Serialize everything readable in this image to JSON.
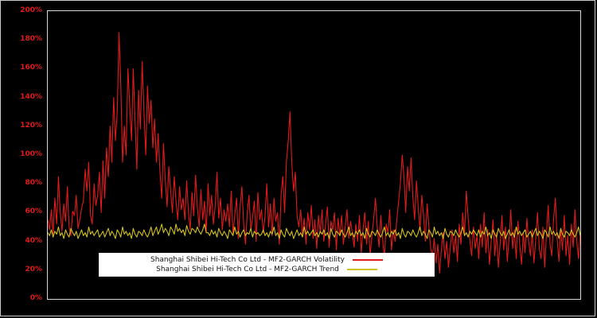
{
  "figure": {
    "background": "#000000",
    "border_color": "#c9c9c9",
    "axis_label_color": "#e11b1b"
  },
  "chart_data": {
    "type": "line",
    "title": "",
    "xlabel": "",
    "ylabel": "",
    "ylim": [
      0,
      200
    ],
    "grid": false,
    "legend_position": "lower-left-inside",
    "y_ticks": [
      "0%",
      "20%",
      "40%",
      "60%",
      "80%",
      "100%",
      "120%",
      "140%",
      "160%",
      "180%",
      "200%"
    ],
    "y_tick_values": [
      0,
      20,
      40,
      60,
      80,
      100,
      120,
      140,
      160,
      180,
      200
    ],
    "x_ticks": [],
    "series": [
      {
        "name": "Shanghai Shibei Hi-Tech Co Ltd - MF2-GARCH Volatility",
        "color": "#e11b1b",
        "unit": "%",
        "values": [
          55,
          48,
          62,
          45,
          70,
          52,
          85,
          60,
          47,
          66,
          54,
          78,
          50,
          44,
          61,
          58,
          72,
          49,
          55,
          63,
          68,
          90,
          75,
          95,
          58,
          52,
          80,
          65,
          72,
          88,
          60,
          96,
          70,
          105,
          85,
          120,
          95,
          140,
          110,
          130,
          185,
          150,
          95,
          120,
          100,
          160,
          135,
          110,
          160,
          125,
          90,
          145,
          118,
          165,
          130,
          100,
          148,
          122,
          138,
          105,
          125,
          95,
          115,
          88,
          70,
          108,
          82,
          64,
          92,
          75,
          60,
          85,
          68,
          55,
          78,
          62,
          70,
          55,
          82,
          60,
          48,
          74,
          58,
          86,
          64,
          50,
          76,
          55,
          68,
          46,
          80,
          58,
          72,
          52,
          64,
          88,
          56,
          70,
          48,
          62,
          54,
          66,
          50,
          75,
          45,
          58,
          70,
          42,
          64,
          78,
          52,
          38,
          60,
          72,
          48,
          56,
          68,
          40,
          74,
          55,
          62,
          46,
          58,
          80,
          50,
          66,
          44,
          70,
          54,
          60,
          38,
          72,
          85,
          60,
          95,
          110,
          130,
          95,
          75,
          88,
          58,
          50,
          62,
          44,
          56,
          38,
          60,
          48,
          65,
          42,
          55,
          35,
          58,
          46,
          62,
          40,
          52,
          64,
          36,
          54,
          48,
          60,
          34,
          56,
          44,
          58,
          38,
          50,
          62,
          42,
          54,
          46,
          36,
          52,
          40,
          58,
          32,
          48,
          60,
          38,
          54,
          30,
          44,
          56,
          70,
          50,
          36,
          58,
          42,
          28,
          52,
          46,
          62,
          34,
          48,
          40,
          55,
          68,
          80,
          100,
          85,
          60,
          92,
          75,
          98,
          70,
          55,
          82,
          64,
          48,
          72,
          58,
          40,
          66,
          50,
          35,
          30,
          42,
          25,
          38,
          18,
          34,
          46,
          28,
          40,
          22,
          36,
          48,
          32,
          44,
          26,
          52,
          38,
          60,
          45,
          75,
          58,
          40,
          30,
          50,
          35,
          44,
          28,
          52,
          36,
          60,
          32,
          48,
          24,
          40,
          55,
          30,
          46,
          22,
          38,
          58,
          34,
          50,
          26,
          42,
          62,
          35,
          48,
          28,
          54,
          38,
          24,
          46,
          32,
          56,
          40,
          30,
          48,
          25,
          42,
          60,
          35,
          28,
          50,
          22,
          45,
          65,
          38,
          30,
          55,
          70,
          42,
          26,
          48,
          34,
          58,
          30,
          44,
          24,
          52,
          36,
          62,
          40,
          28,
          46
        ]
      },
      {
        "name": "Shanghai Shibei Hi-Tech Co Ltd - MF2-GARCH Trend",
        "color": "#d3c11f",
        "unit": "%",
        "values": [
          46,
          44,
          48,
          43,
          47,
          45,
          50,
          44,
          46,
          42,
          48,
          45,
          43,
          49,
          46,
          44,
          47,
          42,
          45,
          48,
          44,
          46,
          43,
          50,
          45,
          47,
          44,
          46,
          48,
          43,
          45,
          47,
          43,
          46,
          49,
          44,
          47,
          45,
          42,
          48,
          46,
          43,
          50,
          45,
          47,
          44,
          46,
          42,
          49,
          45,
          43,
          47,
          46,
          44,
          48,
          45,
          43,
          46,
          50,
          44,
          47,
          50,
          45,
          48,
          52,
          46,
          49,
          47,
          44,
          50,
          48,
          45,
          52,
          47,
          49,
          46,
          48,
          44,
          51,
          47,
          45,
          49,
          48,
          46,
          50,
          47,
          45,
          48,
          52,
          46,
          46,
          44,
          48,
          45,
          47,
          43,
          49,
          46,
          44,
          47,
          45,
          42,
          48,
          46,
          44,
          50,
          45,
          47,
          43,
          46,
          48,
          44,
          46,
          45,
          49,
          43,
          47,
          45,
          46,
          44,
          45,
          48,
          44,
          46,
          43,
          47,
          45,
          50,
          44,
          46,
          42,
          48,
          45,
          43,
          49,
          46,
          44,
          47,
          42,
          45,
          48,
          44,
          46,
          43,
          50,
          45,
          47,
          44,
          46,
          48,
          44,
          46,
          43,
          47,
          45,
          48,
          44,
          46,
          42,
          49,
          45,
          43,
          47,
          46,
          44,
          48,
          45,
          43,
          46,
          50,
          44,
          46,
          43,
          47,
          45,
          48,
          44,
          46,
          42,
          49,
          45,
          43,
          47,
          46,
          44,
          48,
          45,
          43,
          46,
          50,
          44,
          46,
          43,
          47,
          45,
          48,
          44,
          46,
          42,
          49,
          45,
          43,
          47,
          46,
          44,
          48,
          45,
          43,
          46,
          50,
          44,
          47,
          45,
          42,
          48,
          46,
          43,
          50,
          45,
          47,
          44,
          46,
          42,
          49,
          45,
          43,
          47,
          46,
          44,
          48,
          45,
          43,
          46,
          50,
          44,
          46,
          43,
          47,
          45,
          48,
          46,
          44,
          48,
          43,
          47,
          45,
          50,
          44,
          46,
          42,
          48,
          45,
          43,
          49,
          46,
          44,
          47,
          42,
          45,
          48,
          44,
          46,
          43,
          50,
          45,
          47,
          44,
          46,
          48,
          43,
          45,
          47,
          43,
          46,
          49,
          44,
          47,
          45,
          42,
          48,
          46,
          43,
          50,
          45,
          47,
          44,
          46,
          42,
          49,
          45,
          43,
          47,
          46,
          44,
          48,
          45,
          43,
          46,
          50,
          44
        ]
      }
    ]
  }
}
